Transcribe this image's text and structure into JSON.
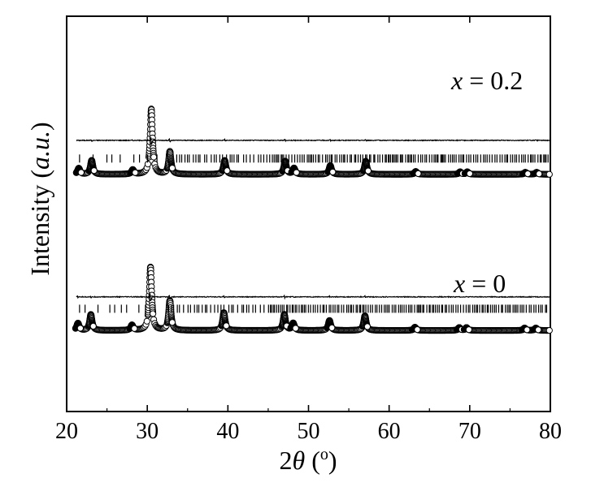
{
  "chart_data": {
    "type": "scatter",
    "title": "",
    "xlabel": {
      "prefix": "2",
      "symbol": "θ",
      "unit_open": " (",
      "unit_sup": "o",
      "unit_close": ")"
    },
    "ylabel": {
      "text": "Intensity ",
      "unit_open": "(",
      "unit": "a.u.",
      "unit_close": ")"
    },
    "xlim": [
      20,
      80
    ],
    "xticks": [
      20,
      30,
      40,
      50,
      60,
      70,
      80
    ],
    "y_tick_labels": false,
    "grid": false,
    "panels": [
      {
        "label": {
          "var": "x",
          "rest": " = 0.2"
        },
        "baseline": 0.6,
        "peaks": [
          {
            "x": 21.5,
            "h": 0.015
          },
          {
            "x": 23.1,
            "h": 0.035
          },
          {
            "x": 28.2,
            "h": 0.011
          },
          {
            "x": 30.5,
            "h": 0.165
          },
          {
            "x": 32.8,
            "h": 0.057
          },
          {
            "x": 39.6,
            "h": 0.035
          },
          {
            "x": 47.1,
            "h": 0.033
          },
          {
            "x": 48.2,
            "h": 0.015
          },
          {
            "x": 52.7,
            "h": 0.022
          },
          {
            "x": 57.1,
            "h": 0.033
          },
          {
            "x": 63.3,
            "h": 0.007
          },
          {
            "x": 68.8,
            "h": 0.006
          },
          {
            "x": 69.7,
            "h": 0.006
          },
          {
            "x": 76.9,
            "h": 0.005
          },
          {
            "x": 78.3,
            "h": 0.005
          }
        ],
        "bragg_y": 0.64,
        "diff_y": 0.686
      },
      {
        "label": {
          "var": "x",
          "rest": " = 0"
        },
        "baseline": 0.205,
        "peaks": [
          {
            "x": 21.4,
            "h": 0.018
          },
          {
            "x": 23.0,
            "h": 0.04
          },
          {
            "x": 28.1,
            "h": 0.013
          },
          {
            "x": 30.4,
            "h": 0.16
          },
          {
            "x": 32.8,
            "h": 0.075
          },
          {
            "x": 39.5,
            "h": 0.045
          },
          {
            "x": 47.0,
            "h": 0.04
          },
          {
            "x": 48.1,
            "h": 0.018
          },
          {
            "x": 52.6,
            "h": 0.025
          },
          {
            "x": 57.0,
            "h": 0.037
          },
          {
            "x": 63.2,
            "h": 0.008
          },
          {
            "x": 68.7,
            "h": 0.007
          },
          {
            "x": 69.6,
            "h": 0.007
          },
          {
            "x": 76.8,
            "h": 0.006
          },
          {
            "x": 78.2,
            "h": 0.006
          }
        ],
        "bragg_y": 0.26,
        "diff_y": 0.29
      }
    ]
  }
}
